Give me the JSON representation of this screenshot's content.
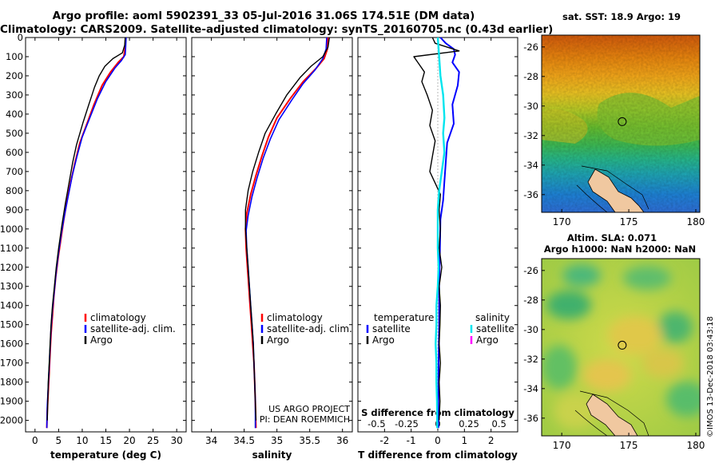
{
  "header": {
    "title_line1": "Argo profile: aoml 5902391_33 05-Jul-2016 31.06S 174.51E (DM data)",
    "title_line2": "Climatology: CARS2009. Satellite-adjusted climatology: synTS_20160705.nc (0.43d earlier)"
  },
  "colors": {
    "climatology": "#ff0000",
    "satellite": "#0000ff",
    "argo": "#000000",
    "sal_satellite": "#00e5ee",
    "sal_argo": "#ff00ff"
  },
  "chart_data": [
    {
      "type": "line",
      "name": "temperature",
      "xlabel": "temperature (deg C)",
      "xlim": [
        -2,
        32
      ],
      "ylim": [
        2060,
        0
      ],
      "xticks": [
        0,
        5,
        10,
        15,
        20,
        25,
        30
      ],
      "yticks": [
        0,
        100,
        200,
        300,
        400,
        500,
        600,
        700,
        800,
        900,
        1000,
        1100,
        1200,
        1300,
        1400,
        1500,
        1600,
        1700,
        1800,
        1900,
        2000
      ],
      "legend": [
        "climatology",
        "satellite-adj. clim.",
        "Argo"
      ],
      "series": [
        {
          "name": "climatology",
          "points": [
            [
              19.2,
              0
            ],
            [
              19.1,
              50
            ],
            [
              18.8,
              100
            ],
            [
              17.6,
              130
            ],
            [
              16,
              180
            ],
            [
              14.2,
              250
            ],
            [
              12.5,
              350
            ],
            [
              11,
              450
            ],
            [
              9.5,
              550
            ],
            [
              8.5,
              650
            ],
            [
              7.6,
              750
            ],
            [
              6.8,
              850
            ],
            [
              6.1,
              950
            ],
            [
              5.5,
              1050
            ],
            [
              4.9,
              1150
            ],
            [
              4.4,
              1250
            ],
            [
              4,
              1350
            ],
            [
              3.7,
              1450
            ],
            [
              3.4,
              1550
            ],
            [
              3.2,
              1650
            ],
            [
              3,
              1750
            ],
            [
              2.8,
              1850
            ],
            [
              2.6,
              1950
            ],
            [
              2.5,
              2040
            ]
          ]
        },
        {
          "name": "satellite-adj. clim.",
          "points": [
            [
              19.3,
              0
            ],
            [
              19.2,
              50
            ],
            [
              19.1,
              90
            ],
            [
              18.3,
              120
            ],
            [
              16.9,
              160
            ],
            [
              15,
              230
            ],
            [
              13.2,
              320
            ],
            [
              11.6,
              420
            ],
            [
              10,
              520
            ],
            [
              8.9,
              620
            ],
            [
              7.9,
              720
            ],
            [
              7.1,
              820
            ],
            [
              6.3,
              920
            ],
            [
              5.6,
              1020
            ],
            [
              5,
              1120
            ],
            [
              4.5,
              1220
            ],
            [
              4.1,
              1320
            ],
            [
              3.7,
              1420
            ],
            [
              3.4,
              1520
            ],
            [
              3.2,
              1620
            ],
            [
              3,
              1720
            ],
            [
              2.8,
              1820
            ],
            [
              2.6,
              1920
            ],
            [
              2.5,
              2040
            ]
          ]
        },
        {
          "name": "Argo",
          "points": [
            [
              19.1,
              0
            ],
            [
              19,
              40
            ],
            [
              18.5,
              80
            ],
            [
              16.5,
              110
            ],
            [
              14.8,
              150
            ],
            [
              13.6,
              200
            ],
            [
              12.6,
              260
            ],
            [
              11.4,
              350
            ],
            [
              10.1,
              450
            ],
            [
              8.8,
              560
            ],
            [
              8,
              650
            ],
            [
              7.2,
              760
            ],
            [
              6.4,
              870
            ],
            [
              5.7,
              980
            ],
            [
              5,
              1100
            ],
            [
              4.5,
              1200
            ],
            [
              4.1,
              1300
            ],
            [
              3.7,
              1400
            ],
            [
              3.4,
              1500
            ],
            [
              3.2,
              1600
            ],
            [
              3,
              1700
            ],
            [
              2.8,
              1800
            ],
            [
              2.7,
              1900
            ],
            [
              2.6,
              2000
            ]
          ]
        }
      ]
    },
    {
      "type": "line",
      "name": "salinity",
      "xlabel": "salinity",
      "xlim": [
        33.7,
        36.15
      ],
      "ylim": [
        2060,
        0
      ],
      "xticks": [
        34,
        34.5,
        35,
        35.5,
        36
      ],
      "legend": [
        "climatology",
        "satellite-adj. clim.",
        "Argo"
      ],
      "annotation": [
        "US ARGO PROJECT",
        "PI: DEAN ROEMMICH"
      ],
      "series": [
        {
          "name": "climatology",
          "points": [
            [
              35.78,
              0
            ],
            [
              35.77,
              60
            ],
            [
              35.72,
              110
            ],
            [
              35.6,
              160
            ],
            [
              35.4,
              230
            ],
            [
              35.2,
              320
            ],
            [
              35,
              420
            ],
            [
              34.87,
              520
            ],
            [
              34.77,
              620
            ],
            [
              34.68,
              720
            ],
            [
              34.6,
              820
            ],
            [
              34.54,
              920
            ],
            [
              34.52,
              1000
            ],
            [
              34.53,
              1100
            ],
            [
              34.55,
              1200
            ],
            [
              34.57,
              1300
            ],
            [
              34.59,
              1400
            ],
            [
              34.61,
              1500
            ],
            [
              34.63,
              1600
            ],
            [
              34.65,
              1700
            ],
            [
              34.66,
              1800
            ],
            [
              34.67,
              1900
            ],
            [
              34.68,
              2040
            ]
          ]
        },
        {
          "name": "satellite-adj. clim.",
          "points": [
            [
              35.76,
              0
            ],
            [
              35.75,
              60
            ],
            [
              35.7,
              110
            ],
            [
              35.58,
              170
            ],
            [
              35.4,
              240
            ],
            [
              35.22,
              330
            ],
            [
              35.03,
              430
            ],
            [
              34.9,
              530
            ],
            [
              34.79,
              630
            ],
            [
              34.7,
              730
            ],
            [
              34.62,
              830
            ],
            [
              34.56,
              930
            ],
            [
              34.53,
              1010
            ],
            [
              34.54,
              1100
            ],
            [
              34.56,
              1200
            ],
            [
              34.58,
              1300
            ],
            [
              34.6,
              1400
            ],
            [
              34.62,
              1500
            ],
            [
              34.64,
              1600
            ],
            [
              34.65,
              1700
            ],
            [
              34.66,
              1800
            ],
            [
              34.67,
              1900
            ],
            [
              34.67,
              2040
            ]
          ]
        },
        {
          "name": "Argo",
          "points": [
            [
              35.8,
              0
            ],
            [
              35.78,
              50
            ],
            [
              35.7,
              100
            ],
            [
              35.52,
              150
            ],
            [
              35.35,
              210
            ],
            [
              35.15,
              300
            ],
            [
              34.98,
              400
            ],
            [
              34.82,
              500
            ],
            [
              34.72,
              600
            ],
            [
              34.63,
              700
            ],
            [
              34.56,
              800
            ],
            [
              34.52,
              900
            ],
            [
              34.52,
              1000
            ],
            [
              34.54,
              1100
            ],
            [
              34.56,
              1200
            ],
            [
              34.58,
              1300
            ],
            [
              34.6,
              1400
            ],
            [
              34.62,
              1500
            ],
            [
              34.64,
              1600
            ],
            [
              34.65,
              1700
            ],
            [
              34.66,
              1800
            ],
            [
              34.67,
              1900
            ],
            [
              34.68,
              2000
            ]
          ]
        }
      ]
    },
    {
      "type": "line",
      "name": "difference",
      "xlabel": "T difference from climatology",
      "xlabel_top": "S difference from climatology",
      "xlim": [
        -3,
        3
      ],
      "ylim": [
        2060,
        0
      ],
      "xticks": [
        -2,
        -1,
        0,
        1,
        2
      ],
      "top_ticks": [
        {
          "pos": -2.3,
          "label": "-0.5"
        },
        {
          "pos": -1.17,
          "label": "-0.25"
        },
        {
          "pos": 0,
          "label": "0"
        },
        {
          "pos": 1.17,
          "label": "0.25"
        },
        {
          "pos": 2.3,
          "label": "0.5"
        }
      ],
      "legend": {
        "temperature": [
          "satellite",
          "Argo"
        ],
        "salinity": [
          "satellite",
          "Argo"
        ]
      },
      "legend_headers": [
        "temperature",
        "salinity"
      ],
      "series": [
        {
          "name": "T satellite",
          "points": [
            [
              0.1,
              0
            ],
            [
              0.3,
              30
            ],
            [
              0.6,
              60
            ],
            [
              0.65,
              90
            ],
            [
              0.55,
              130
            ],
            [
              0.8,
              180
            ],
            [
              0.75,
              250
            ],
            [
              0.55,
              350
            ],
            [
              0.6,
              450
            ],
            [
              0.35,
              550
            ],
            [
              0.3,
              650
            ],
            [
              0.25,
              750
            ],
            [
              0.2,
              850
            ],
            [
              0.1,
              950
            ],
            [
              0.08,
              1100
            ],
            [
              0.05,
              1300
            ],
            [
              0.05,
              1500
            ],
            [
              0.03,
              1700
            ],
            [
              0.02,
              1900
            ],
            [
              0.02,
              2040
            ]
          ]
        },
        {
          "name": "T Argo",
          "points": [
            [
              -0.2,
              0
            ],
            [
              -0.1,
              30
            ],
            [
              0.8,
              70
            ],
            [
              -0.9,
              100
            ],
            [
              -0.7,
              140
            ],
            [
              -0.5,
              180
            ],
            [
              -0.6,
              230
            ],
            [
              -0.4,
              300
            ],
            [
              -0.2,
              380
            ],
            [
              -0.3,
              460
            ],
            [
              -0.1,
              540
            ],
            [
              -0.2,
              620
            ],
            [
              -0.3,
              700
            ],
            [
              -0.1,
              760
            ],
            [
              0.1,
              820
            ],
            [
              0.05,
              900
            ],
            [
              0.1,
              1000
            ],
            [
              0.05,
              1100
            ],
            [
              0.15,
              1200
            ],
            [
              0.05,
              1300
            ],
            [
              0.1,
              1400
            ],
            [
              0.08,
              1500
            ],
            [
              0.05,
              1600
            ],
            [
              0.1,
              1700
            ],
            [
              0.05,
              1800
            ],
            [
              0.08,
              1900
            ],
            [
              0.05,
              2000
            ]
          ]
        },
        {
          "name": "S satellite",
          "points": [
            [
              0,
              0
            ],
            [
              0.05,
              100
            ],
            [
              0.1,
              200
            ],
            [
              0.2,
              300
            ],
            [
              0.25,
              420
            ],
            [
              0.2,
              500
            ],
            [
              0.25,
              600
            ],
            [
              0.15,
              700
            ],
            [
              0.05,
              800
            ],
            [
              0,
              900
            ],
            [
              0,
              1000
            ],
            [
              0,
              1100
            ],
            [
              0.03,
              1200
            ],
            [
              0,
              1300
            ],
            [
              -0.05,
              1400
            ],
            [
              -0.05,
              1500
            ],
            [
              -0.08,
              1600
            ],
            [
              -0.05,
              1700
            ],
            [
              -0.05,
              1800
            ],
            [
              -0.03,
              1900
            ],
            [
              -0.02,
              2040
            ]
          ]
        }
      ]
    },
    {
      "type": "heatmap",
      "name": "sst-map",
      "title": "sat. SST: 18.9 Argo: 19",
      "xlim": [
        168.5,
        180.3
      ],
      "ylim": [
        -37.2,
        -25.2
      ],
      "xticks": [
        170,
        175,
        180
      ],
      "yticks": [
        -26,
        -28,
        -30,
        -32,
        -34,
        -36
      ],
      "marker": {
        "lon": 174.51,
        "lat": -31.06
      }
    },
    {
      "type": "heatmap",
      "name": "sla-map",
      "title": "Altim. SLA: 0.071",
      "subtitle": "Argo h1000: NaN h2000: NaN",
      "xlim": [
        168.5,
        180.3
      ],
      "ylim": [
        -37.2,
        -25.2
      ],
      "xticks": [
        170,
        175,
        180
      ],
      "yticks": [
        -26,
        -28,
        -30,
        -32,
        -34,
        -36
      ],
      "marker": {
        "lon": 174.51,
        "lat": -31.06
      }
    }
  ],
  "watermark": "©IMOS 13-Dec-2018 03:43:18"
}
